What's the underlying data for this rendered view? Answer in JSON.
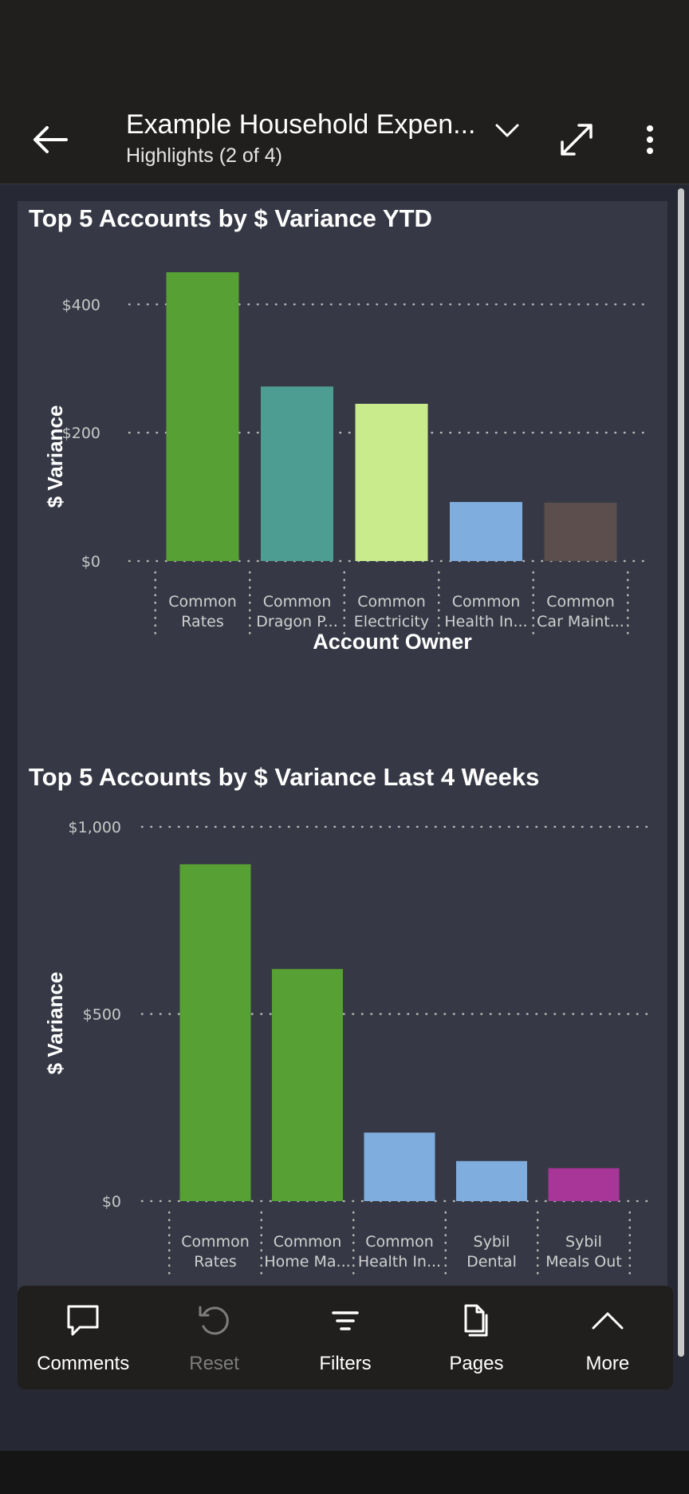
{
  "header": {
    "report_title": "Example Household Expen...",
    "subtitle": "Highlights (2 of 4)"
  },
  "charts": [
    {
      "id": "chart1",
      "title": "Top 5 Accounts by $ Variance YTD",
      "ylabel": "$ Variance",
      "xlabel": "Account Owner",
      "yticks": [
        {
          "value": 0,
          "label": "$0"
        },
        {
          "value": 200,
          "label": "$200"
        },
        {
          "value": 400,
          "label": "$400"
        }
      ],
      "ylim": [
        0,
        480
      ],
      "categories": [
        {
          "line1": "Common",
          "line2": "Rates",
          "value": 450,
          "color": "#57a033"
        },
        {
          "line1": "Common",
          "line2": "Dragon P...",
          "value": 272,
          "color": "#4e9d92"
        },
        {
          "line1": "Common",
          "line2": "Electricity",
          "value": 245,
          "color": "#c9eb8b"
        },
        {
          "line1": "Common",
          "line2": "Health In...",
          "value": 92,
          "color": "#7fadde"
        },
        {
          "line1": "Common",
          "line2": "Car Maint...",
          "value": 91,
          "color": "#5b4e4c"
        }
      ]
    },
    {
      "id": "chart2",
      "title": "Top 5 Accounts by $ Variance Last 4 Weeks",
      "ylabel": "$ Variance",
      "xlabel": "",
      "yticks": [
        {
          "value": 0,
          "label": "$0"
        },
        {
          "value": 500,
          "label": "$500"
        },
        {
          "value": 1000,
          "label": "$1,000"
        }
      ],
      "ylim": [
        0,
        1000
      ],
      "categories": [
        {
          "line1": "Common",
          "line2": "Rates",
          "value": 900,
          "color": "#57a033"
        },
        {
          "line1": "Common",
          "line2": "Home Ma...",
          "value": 620,
          "color": "#57a033"
        },
        {
          "line1": "Common",
          "line2": "Health In...",
          "value": 183,
          "color": "#7fadde"
        },
        {
          "line1": "Sybil",
          "line2": "Dental",
          "value": 107,
          "color": "#7fadde"
        },
        {
          "line1": "Sybil",
          "line2": "Meals Out",
          "value": 88,
          "color": "#a83598"
        }
      ]
    }
  ],
  "chart_data": [
    {
      "type": "bar",
      "title": "Top 5 Accounts by $ Variance YTD",
      "xlabel": "Account Owner",
      "ylabel": "$ Variance",
      "categories": [
        "Common Rates",
        "Common Dragon P...",
        "Common Electricity",
        "Common Health In...",
        "Common Car Maint..."
      ],
      "values": [
        450,
        272,
        245,
        92,
        91
      ],
      "ylim": [
        0,
        480
      ],
      "grid": true
    },
    {
      "type": "bar",
      "title": "Top 5 Accounts by $ Variance Last 4 Weeks",
      "xlabel": "",
      "ylabel": "$ Variance",
      "categories": [
        "Common Rates",
        "Common Home Ma...",
        "Common Health In...",
        "Sybil Dental",
        "Sybil Meals Out"
      ],
      "values": [
        900,
        620,
        183,
        107,
        88
      ],
      "ylim": [
        0,
        1000
      ],
      "grid": true
    }
  ],
  "bottom_nav": [
    {
      "label": "Comments",
      "icon": "comment-icon",
      "enabled": true
    },
    {
      "label": "Reset",
      "icon": "reset-icon",
      "enabled": false
    },
    {
      "label": "Filters",
      "icon": "filter-icon",
      "enabled": true
    },
    {
      "label": "Pages",
      "icon": "pages-icon",
      "enabled": true
    },
    {
      "label": "More",
      "icon": "chevron-up-icon",
      "enabled": true
    }
  ]
}
